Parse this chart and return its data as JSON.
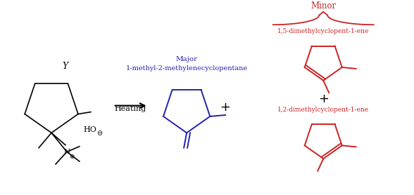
{
  "bg_color": "#ffffff",
  "black": "#000000",
  "blue": "#2222aa",
  "red": "#cc2222",
  "heating_label": "Heating",
  "major_label": "1-methyl-2-methylenecyclopentane",
  "major_sublabel": "Major",
  "minor_label": "1,5-dimethylcyclopent-1-ene",
  "minor_sublabel": "Minor",
  "product1_label": "1,2-dimethylcyclopent-1-ene",
  "Y_label": "Y",
  "plus1": "+",
  "plus2": "+"
}
